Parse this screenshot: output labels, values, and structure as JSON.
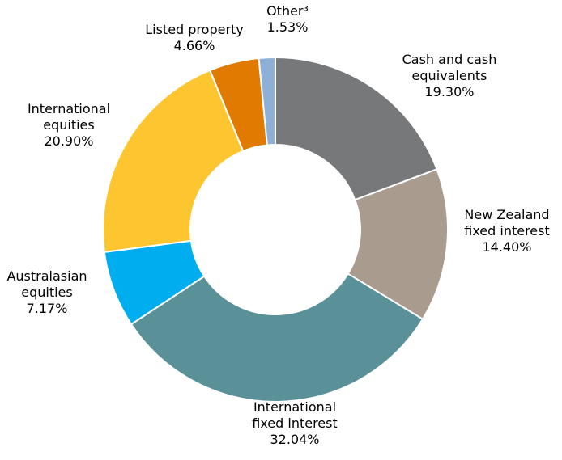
{
  "chart_data": {
    "type": "pie",
    "donut": true,
    "start_angle_deg": 0,
    "direction": "clockwise",
    "slices": [
      {
        "name": "Cash and cash equivalents",
        "label_lines": [
          "Cash and cash",
          "equivalents",
          "19.30%"
        ],
        "value": 19.3,
        "color": "#76787a"
      },
      {
        "name": "New Zealand fixed interest",
        "label_lines": [
          "New Zealand",
          "fixed interest",
          "14.40%"
        ],
        "value": 14.4,
        "color": "#a99b8e"
      },
      {
        "name": "International fixed interest",
        "label_lines": [
          "International",
          "fixed interest",
          "32.04%"
        ],
        "value": 32.04,
        "color": "#5a9199"
      },
      {
        "name": "Australasian equities",
        "label_lines": [
          "Australasian",
          "equities",
          "7.17%"
        ],
        "value": 7.17,
        "color": "#00aeef"
      },
      {
        "name": "International equities",
        "label_lines": [
          "International",
          "equities",
          "20.90%"
        ],
        "value": 20.9,
        "color": "#fdc52f"
      },
      {
        "name": "Listed property",
        "label_lines": [
          "Listed property",
          "4.66%"
        ],
        "value": 4.66,
        "color": "#e07a00"
      },
      {
        "name": "Other",
        "label_lines": [
          "Other³",
          "1.53%"
        ],
        "value": 1.53,
        "color": "#8fb0d6"
      }
    ]
  }
}
